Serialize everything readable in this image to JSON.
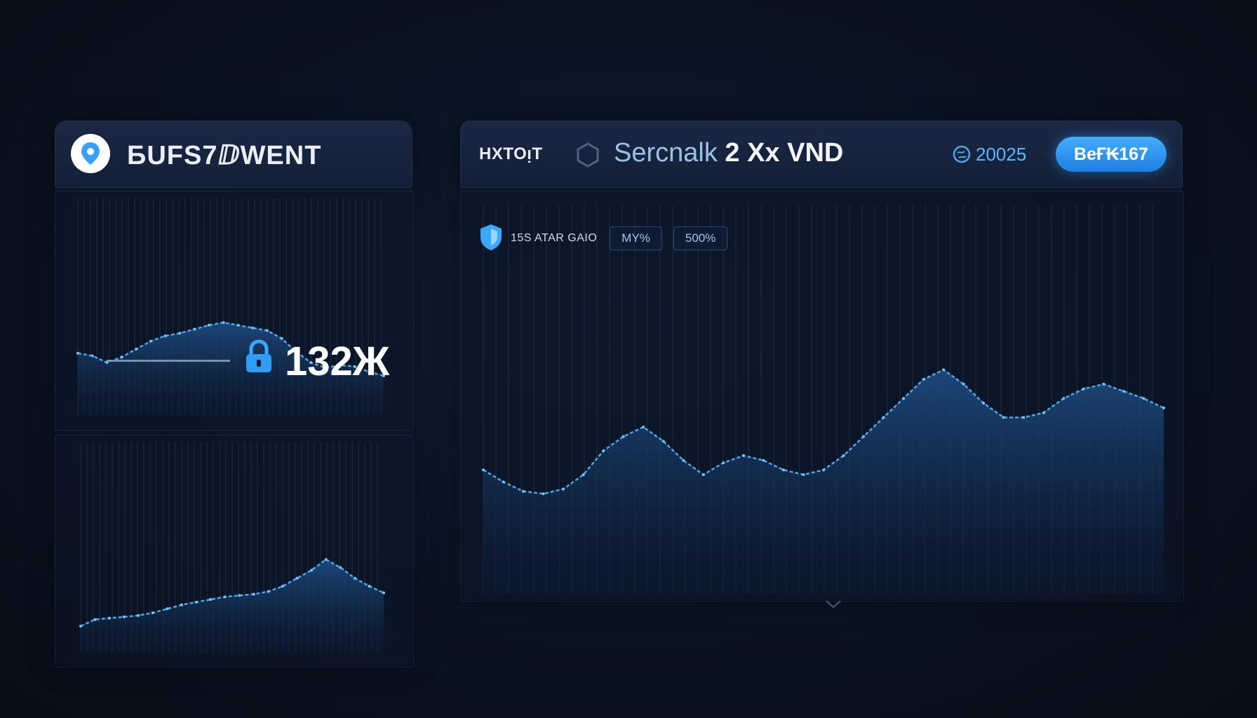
{
  "left_panel": {
    "title": "БUFS7ⅅWENT",
    "logo_icon": "map-pin-icon",
    "readout": {
      "value": "132Ж",
      "icon": "lock-icon"
    },
    "top_chart": {
      "y": [
        47,
        45,
        40,
        44,
        50,
        56,
        60,
        62,
        65,
        68,
        70,
        68,
        66,
        64,
        58,
        48,
        40,
        36,
        38,
        37,
        33,
        30
      ]
    },
    "bottom_chart": {
      "y": [
        20,
        25,
        26,
        27,
        28,
        30,
        33,
        36,
        38,
        40,
        42,
        43,
        44,
        46,
        50,
        56,
        62,
        70,
        64,
        56,
        50,
        45
      ]
    }
  },
  "right_panel": {
    "brand": "HXTOᴉT",
    "hex_icon": "hexagon-icon",
    "title_prefix": "Sercnalk",
    "title_strong": "2 Xx VND",
    "year_icon": "globe-icon",
    "year": "20025",
    "action_button": "BeҒ₭167",
    "stats_icon": "shield-icon",
    "stats_label": "15S ATAR GAIO",
    "chips": [
      "MY%",
      "500%"
    ],
    "main_chart": {
      "y": [
        52,
        47,
        43,
        42,
        44,
        50,
        60,
        66,
        70,
        64,
        56,
        50,
        55,
        58,
        56,
        52,
        50,
        52,
        58,
        66,
        74,
        82,
        90,
        94,
        88,
        80,
        74,
        74,
        76,
        82,
        86,
        88,
        85,
        82,
        78
      ]
    }
  },
  "colors": {
    "accent": "#3aa0ff",
    "line": "#4aa8e8",
    "fill_top": "#1d4a7e",
    "fill_bottom": "#0b1a33"
  }
}
